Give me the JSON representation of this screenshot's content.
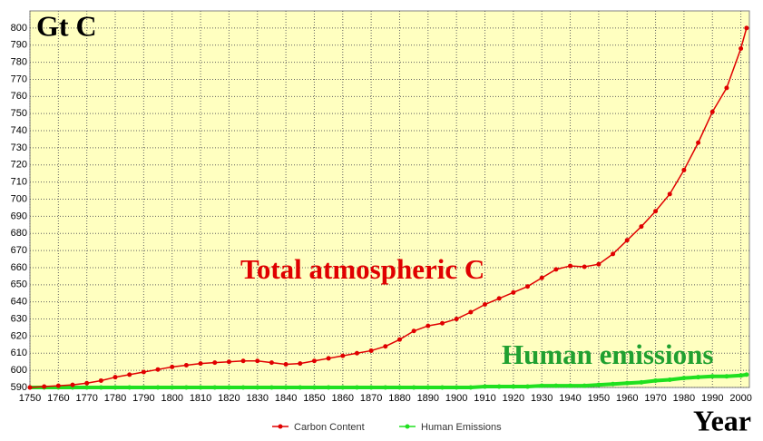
{
  "chart_data": {
    "type": "line",
    "y_label": "Gt C",
    "x_label": "Year",
    "annotations": [
      "Total atmospheric C",
      "Human emissions"
    ],
    "x": [
      1750,
      1755,
      1760,
      1765,
      1770,
      1775,
      1780,
      1785,
      1790,
      1795,
      1800,
      1805,
      1810,
      1815,
      1820,
      1825,
      1830,
      1835,
      1840,
      1845,
      1850,
      1855,
      1860,
      1865,
      1870,
      1875,
      1880,
      1885,
      1890,
      1895,
      1900,
      1905,
      1910,
      1915,
      1920,
      1925,
      1930,
      1935,
      1940,
      1945,
      1950,
      1955,
      1960,
      1965,
      1970,
      1975,
      1980,
      1985,
      1990,
      1995,
      2000,
      2002
    ],
    "series": [
      {
        "name": "Carbon Content",
        "color": "#e00000",
        "values": [
          590,
          590.5,
          591,
          591.5,
          592.5,
          594,
          596,
          597.5,
          599,
          600.5,
          602,
          603,
          604,
          604.5,
          605,
          605.5,
          605.5,
          604.5,
          603.5,
          604,
          605.5,
          607,
          608.5,
          610,
          611.5,
          614,
          618,
          623,
          626,
          627.5,
          630,
          634,
          638.5,
          642,
          645.5,
          649,
          654,
          659,
          661,
          660.5,
          662,
          668,
          676,
          684,
          693,
          703,
          717,
          733,
          751,
          765,
          788,
          800
        ]
      },
      {
        "name": "Human Emissions",
        "color": "#20e020",
        "values": [
          590,
          590,
          590,
          590,
          590,
          590,
          590,
          590,
          590,
          590,
          590,
          590,
          590,
          590,
          590,
          590,
          590,
          590,
          590,
          590,
          590,
          590,
          590,
          590,
          590,
          590,
          590,
          590,
          590,
          590,
          590,
          590,
          590.5,
          590.5,
          590.5,
          590.5,
          591,
          591,
          591,
          591,
          591.5,
          592,
          592.5,
          593,
          594,
          594.5,
          595.5,
          596,
          596.5,
          596.5,
          597,
          597.5
        ]
      }
    ],
    "xlim": [
      1750,
      2003
    ],
    "ylim": [
      590,
      810
    ],
    "xticks": [
      1750,
      1760,
      1770,
      1780,
      1790,
      1800,
      1810,
      1820,
      1830,
      1840,
      1850,
      1860,
      1870,
      1880,
      1890,
      1900,
      1910,
      1920,
      1930,
      1940,
      1950,
      1960,
      1970,
      1980,
      1990,
      2000
    ],
    "yticks": [
      590,
      600,
      610,
      620,
      630,
      640,
      650,
      660,
      670,
      680,
      690,
      700,
      710,
      720,
      730,
      740,
      750,
      760,
      770,
      780,
      790,
      800
    ],
    "grid": true,
    "background": "#ffffc0"
  }
}
